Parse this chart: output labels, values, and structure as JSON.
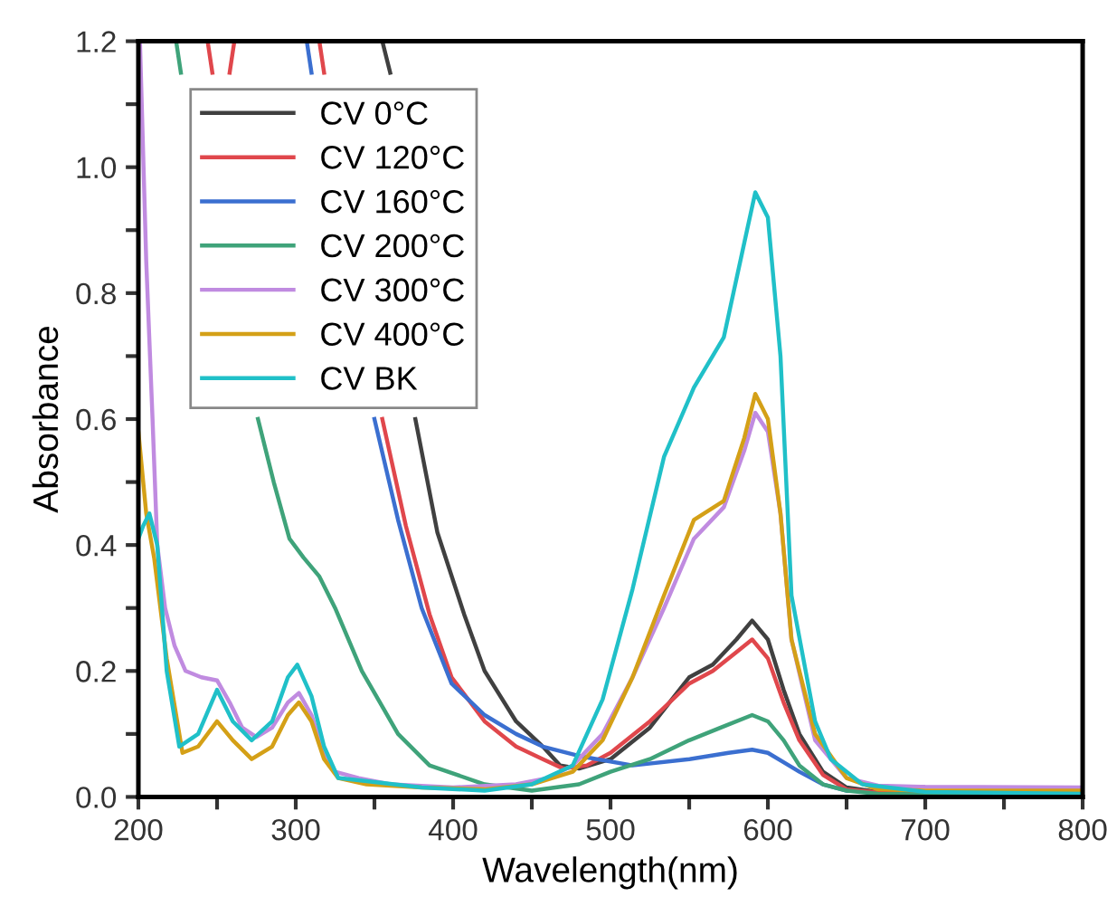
{
  "chart_data": {
    "type": "line",
    "xlabel": "Wavelength(nm)",
    "ylabel": "Absorbance",
    "xlim": [
      200,
      800
    ],
    "ylim": [
      0,
      1.2
    ],
    "xticks": [
      200,
      {
        "value": 250,
        "label": null
      },
      300,
      {
        "value": 350,
        "label": null
      },
      400,
      {
        "value": 450,
        "label": null
      },
      500,
      {
        "value": 550,
        "label": null
      },
      600,
      {
        "value": 650,
        "label": null
      },
      700,
      {
        "value": 750,
        "label": null
      },
      800
    ],
    "yticks": [
      {
        "value": 0,
        "label": "0.0"
      },
      {
        "value": 0.1,
        "label": null
      },
      0.2,
      {
        "value": 0.3,
        "label": null
      },
      0.4,
      {
        "value": 0.5,
        "label": null
      },
      0.6,
      {
        "value": 0.7,
        "label": null
      },
      0.8,
      {
        "value": 0.9,
        "label": null
      },
      {
        "value": 1,
        "label": "1.0"
      },
      {
        "value": 1.1,
        "label": null
      },
      1.2
    ],
    "legend": "top left",
    "grid": false,
    "marker": "none",
    "line_style": "solid",
    "series": [
      {
        "name": "CV 0°C",
        "color": "#404040",
        "x": [
          355,
          360,
          null,
          376,
          390,
          407,
          420,
          440,
          457,
          468,
          480,
          500,
          525,
          550,
          565,
          580,
          590,
          600,
          610,
          620,
          635,
          650,
          670,
          700,
          800
        ],
        "values": [
          1.2,
          1.15,
          null,
          0.6,
          0.42,
          0.29,
          0.2,
          0.12,
          0.08,
          0.05,
          0.045,
          0.06,
          0.11,
          0.19,
          0.21,
          0.25,
          0.28,
          0.25,
          0.17,
          0.1,
          0.04,
          0.015,
          0.008,
          0.006,
          0.005
        ]
      },
      {
        "name": "CV 120°C",
        "color": "#e0474c",
        "x": [
          244,
          247,
          null,
          258,
          261,
          null,
          315,
          318,
          null,
          355,
          370,
          385,
          399,
          420,
          440,
          457,
          470,
          485,
          500,
          525,
          550,
          565,
          580,
          590,
          600,
          610,
          620,
          635,
          650,
          670,
          700,
          800
        ],
        "values": [
          1.2,
          1.15,
          null,
          1.15,
          1.2,
          null,
          1.2,
          1.15,
          null,
          0.6,
          0.43,
          0.29,
          0.19,
          0.12,
          0.08,
          0.06,
          0.045,
          0.05,
          0.07,
          0.12,
          0.18,
          0.2,
          0.23,
          0.25,
          0.22,
          0.15,
          0.09,
          0.035,
          0.012,
          0.007,
          0.006,
          0.005
        ]
      },
      {
        "name": "CV 160°C",
        "color": "#3b6fd0",
        "x": [
          307,
          310,
          null,
          350,
          365,
          380,
          399,
          420,
          440,
          457,
          480,
          514,
          550,
          575,
          590,
          600,
          610,
          620,
          635,
          650
        ],
        "values": [
          1.2,
          1.15,
          null,
          0.6,
          0.44,
          0.3,
          0.18,
          0.13,
          0.1,
          0.08,
          0.065,
          0.05,
          0.06,
          0.07,
          0.075,
          0.07,
          0.055,
          0.04,
          0.02,
          0.01
        ]
      },
      {
        "name": "CV 200°C",
        "color": "#3fa37a",
        "x": [
          224,
          227,
          null,
          276,
          286,
          296,
          305,
          315,
          325,
          342,
          365,
          385,
          420,
          450,
          480,
          500,
          525,
          550,
          570,
          590,
          600,
          610,
          620,
          635,
          650,
          670,
          700,
          800
        ],
        "values": [
          1.2,
          1.15,
          null,
          0.6,
          0.5,
          0.41,
          0.38,
          0.35,
          0.3,
          0.2,
          0.1,
          0.05,
          0.02,
          0.01,
          0.02,
          0.04,
          0.06,
          0.09,
          0.11,
          0.13,
          0.12,
          0.09,
          0.05,
          0.02,
          0.01,
          0.005,
          0.004,
          0.004
        ]
      },
      {
        "name": "CV 300°C",
        "color": "#c08be0",
        "x": [
          201,
          205,
          209,
          212,
          217,
          223,
          230,
          240,
          250,
          258,
          266,
          275,
          285,
          295,
          302,
          310,
          318,
          325,
          340,
          360,
          400,
          440,
          460,
          476,
          495,
          514,
          534,
          553,
          572,
          585,
          592,
          600,
          608,
          615,
          630,
          650,
          670,
          700,
          800
        ],
        "values": [
          1.2,
          0.85,
          0.6,
          0.4,
          0.3,
          0.24,
          0.2,
          0.19,
          0.185,
          0.15,
          0.11,
          0.095,
          0.11,
          0.15,
          0.165,
          0.13,
          0.07,
          0.04,
          0.03,
          0.02,
          0.015,
          0.02,
          0.03,
          0.05,
          0.1,
          0.19,
          0.3,
          0.41,
          0.46,
          0.55,
          0.61,
          0.58,
          0.45,
          0.25,
          0.09,
          0.03,
          0.018,
          0.016,
          0.015
        ]
      },
      {
        "name": "CV 400°C",
        "color": "#d4a017",
        "x": [
          200,
          205,
          210,
          218,
          228,
          238,
          250,
          260,
          272,
          285,
          295,
          302,
          310,
          318,
          327,
          345,
          380,
          420,
          450,
          476,
          495,
          514,
          534,
          553,
          572,
          585,
          592,
          600,
          608,
          615,
          630,
          650,
          670,
          700,
          800
        ],
        "values": [
          0.58,
          0.45,
          0.38,
          0.22,
          0.07,
          0.08,
          0.12,
          0.09,
          0.06,
          0.08,
          0.13,
          0.15,
          0.12,
          0.06,
          0.03,
          0.02,
          0.015,
          0.012,
          0.02,
          0.04,
          0.09,
          0.19,
          0.32,
          0.44,
          0.47,
          0.57,
          0.64,
          0.6,
          0.45,
          0.25,
          0.1,
          0.03,
          0.012,
          0.01,
          0.01
        ]
      },
      {
        "name": "CV BK",
        "color": "#20c0c8",
        "x": [
          200,
          203,
          207,
          212,
          218,
          226,
          238,
          250,
          260,
          272,
          285,
          295,
          301,
          310,
          318,
          327,
          345,
          380,
          420,
          450,
          476,
          495,
          514,
          534,
          553,
          572,
          585,
          592,
          600,
          608,
          615,
          630,
          640,
          660,
          700,
          800
        ],
        "values": [
          0.41,
          0.43,
          0.45,
          0.4,
          0.2,
          0.08,
          0.1,
          0.17,
          0.12,
          0.09,
          0.12,
          0.19,
          0.21,
          0.16,
          0.08,
          0.03,
          0.025,
          0.015,
          0.01,
          0.02,
          0.05,
          0.155,
          0.33,
          0.54,
          0.65,
          0.73,
          0.88,
          0.96,
          0.92,
          0.7,
          0.32,
          0.12,
          0.06,
          0.02,
          0.008,
          0.005
        ]
      }
    ]
  }
}
